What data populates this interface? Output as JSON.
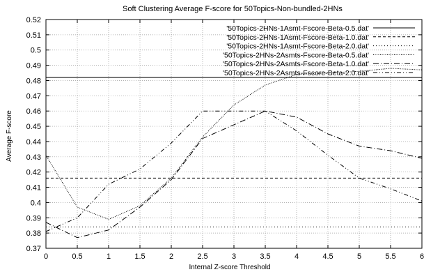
{
  "chart_data": {
    "type": "line",
    "title": "Soft Clustering Average F-score for 50Topics-Non-bundled-2HNs",
    "xlabel": "Internal Z-score Threshold",
    "ylabel": "Average F-score",
    "xlim": [
      0,
      6
    ],
    "ylim": [
      0.37,
      0.52
    ],
    "xticks": [
      0,
      0.5,
      1,
      1.5,
      2,
      2.5,
      3,
      3.5,
      4,
      4.5,
      5,
      5.5,
      6
    ],
    "yticks": [
      0.37,
      0.38,
      0.39,
      0.4,
      0.41,
      0.42,
      0.43,
      0.44,
      0.45,
      0.46,
      0.47,
      0.48,
      0.49,
      0.5,
      0.51,
      0.52
    ],
    "grid": true,
    "legend_position": "top-right",
    "series": [
      {
        "name": "'50Topics-2HNs-1Asmt-Fscore-Beta-0.5.dat'",
        "dash": "solid",
        "x": [
          0,
          6
        ],
        "y": [
          0.482,
          0.482
        ]
      },
      {
        "name": "'50Topics-2HNs-1Asmt-Fscore-Beta-1.0.dat'",
        "dash": "dashed",
        "x": [
          0,
          6
        ],
        "y": [
          0.416,
          0.416
        ]
      },
      {
        "name": "'50Topics-2HNs-1Asmt-Fscore-Beta-2.0.dat'",
        "dash": "dotted",
        "x": [
          0,
          6
        ],
        "y": [
          0.384,
          0.384
        ]
      },
      {
        "name": "'50Topics-2HNs-2Asmts-Fscore-Beta-0.5.dat'",
        "dash": "fine-dotted",
        "x": [
          0,
          0.5,
          1,
          1.5,
          2,
          2.5,
          3,
          3.5,
          4,
          4.5,
          5,
          5.5,
          6
        ],
        "y": [
          0.431,
          0.397,
          0.389,
          0.398,
          0.416,
          0.443,
          0.464,
          0.477,
          0.484,
          0.485,
          0.486,
          0.488,
          0.487
        ]
      },
      {
        "name": "'50Topics-2HNs-2Asmts-Fscore-Beta-1.0.dat'",
        "dash": "dash-dot",
        "x": [
          0,
          0.5,
          1,
          1.5,
          2,
          2.5,
          3,
          3.5,
          4,
          4.5,
          5,
          5.5,
          6
        ],
        "y": [
          0.387,
          0.377,
          0.382,
          0.397,
          0.415,
          0.442,
          0.451,
          0.46,
          0.456,
          0.445,
          0.437,
          0.434,
          0.429
        ]
      },
      {
        "name": "'50Topics-2HNs-2Asmts-Fscore-Beta-2.0.dat'",
        "dash": "dash-dot-dot",
        "x": [
          0,
          0.5,
          1,
          1.5,
          2,
          2.5,
          3,
          3.5,
          4,
          4.5,
          5,
          5.5,
          6
        ],
        "y": [
          0.381,
          0.39,
          0.412,
          0.422,
          0.439,
          0.46,
          0.46,
          0.46,
          0.447,
          0.431,
          0.416,
          0.409,
          0.401
        ]
      }
    ]
  }
}
